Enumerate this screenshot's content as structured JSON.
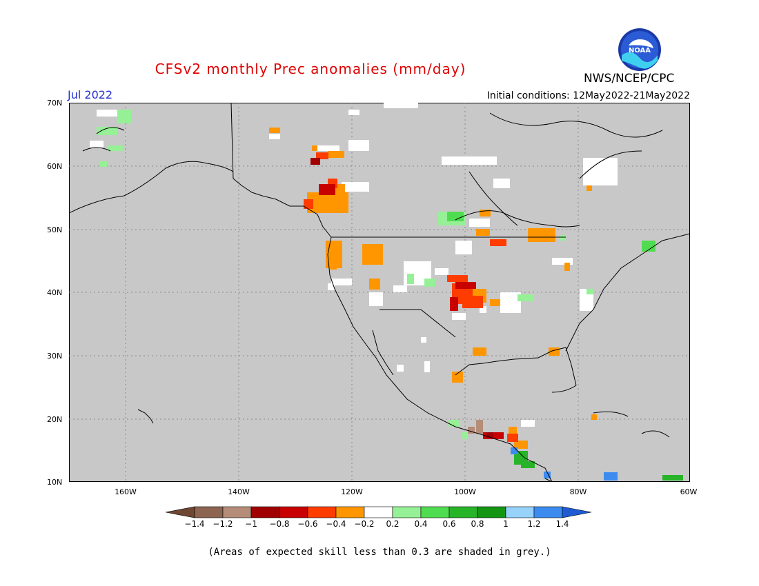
{
  "header": {
    "title": "CFSv2 monthly Prec anomalies (mm/day)",
    "month": "Jul 2022",
    "initial_conditions": "Initial conditions: 12May2022-21May2022",
    "agency": "NWS/NCEP/CPC",
    "logo_text": "NOAA"
  },
  "map": {
    "lat_labels": [
      "70N",
      "60N",
      "50N",
      "40N",
      "30N",
      "20N",
      "10N"
    ],
    "lon_labels": [
      "160W",
      "140W",
      "120W",
      "100W",
      "80W",
      "60W"
    ],
    "background": "#c8c8c8"
  },
  "colorbar": {
    "labels": [
      "-1.4",
      "-1.2",
      "-1",
      "-0.8",
      "-0.6",
      "-0.4",
      "-0.2",
      "0.2",
      "0.4",
      "0.6",
      "0.8",
      "1",
      "1.2",
      "1.4"
    ],
    "colors": [
      "#6e4632",
      "#8c6450",
      "#b48c78",
      "#a00000",
      "#c80000",
      "#ff3c00",
      "#ff9600",
      "#ffffff",
      "#96f096",
      "#50dc50",
      "#28b428",
      "#149614",
      "#96d2fa",
      "#3c8cf0",
      "#1e5ad2"
    ]
  },
  "footer": {
    "note": "(Areas of expected skill less than 0.3 are shaded in grey.)"
  }
}
